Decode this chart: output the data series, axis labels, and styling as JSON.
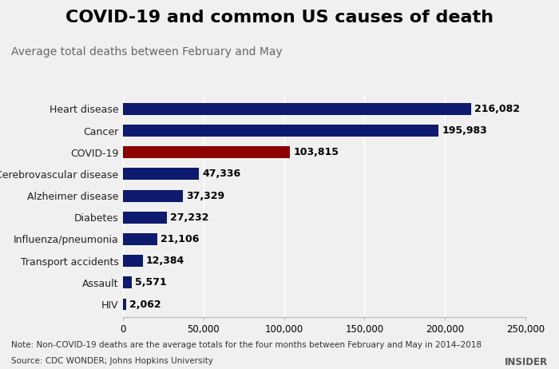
{
  "title": "COVID-19 and common US causes of death",
  "subtitle": "Average total deaths between February and May",
  "categories": [
    "Heart disease",
    "Cancer",
    "COVID-19",
    "Cerebrovascular disease",
    "Alzheimer disease",
    "Diabetes",
    "Influenza/pneumonia",
    "Transport accidents",
    "Assault",
    "HIV"
  ],
  "values": [
    216082,
    195983,
    103815,
    47336,
    37329,
    27232,
    21106,
    12384,
    5571,
    2062
  ],
  "labels": [
    "216,082",
    "195,983",
    "103,815",
    "47,336",
    "37,329",
    "27,232",
    "21,106",
    "12,384",
    "5,571",
    "2,062"
  ],
  "bar_colors": [
    "#0d1a6e",
    "#0d1a6e",
    "#8b0000",
    "#0d1a6e",
    "#0d1a6e",
    "#0d1a6e",
    "#0d1a6e",
    "#0d1a6e",
    "#0d1a6e",
    "#0d1a6e"
  ],
  "xlim": [
    0,
    250000
  ],
  "xticks": [
    0,
    50000,
    100000,
    150000,
    200000,
    250000
  ],
  "xtick_labels": [
    "0",
    "50,000",
    "100,000",
    "150,000",
    "200,000",
    "250,000"
  ],
  "note": "Note: Non-COVID-19 deaths are the average totals for the four months between February and May in 2014–2018",
  "source": "Source: CDC WONDER; Johns Hopkins University",
  "credit": "INSIDER",
  "background_color": "#f0f0f0",
  "title_fontsize": 16,
  "subtitle_fontsize": 10,
  "label_fontsize": 9,
  "tick_fontsize": 8.5,
  "note_fontsize": 7.5,
  "bar_height": 0.55
}
